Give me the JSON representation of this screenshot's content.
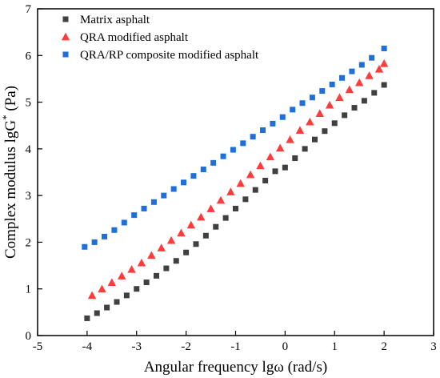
{
  "chart_data": {
    "type": "scatter",
    "title": "",
    "xlabel": "Angular frequency lgω (rad/s)",
    "ylabel": "Complex modulus lgG* (Pa)",
    "ylabel_main": "Complex modulus lgG",
    "ylabel_sup": "*",
    "ylabel_tail": " (Pa)",
    "xlim": [
      -5,
      3
    ],
    "ylim": [
      0,
      7
    ],
    "x_ticks": [
      "-5",
      "-4",
      "-3",
      "-2",
      "-1",
      "0",
      "1",
      "2",
      "3"
    ],
    "y_ticks": [
      "0",
      "1",
      "2",
      "3",
      "4",
      "5",
      "6",
      "7"
    ],
    "grid": false,
    "legend_position": "top-left",
    "series": [
      {
        "name": "Matrix asphalt",
        "marker": "square",
        "color": "#404040",
        "x": [
          -4.0,
          -3.8,
          -3.6,
          -3.4,
          -3.2,
          -3.0,
          -2.8,
          -2.6,
          -2.4,
          -2.2,
          -2.0,
          -1.8,
          -1.6,
          -1.4,
          -1.2,
          -1.0,
          -0.8,
          -0.6,
          -0.4,
          -0.2,
          0.0,
          0.2,
          0.4,
          0.6,
          0.8,
          1.0,
          1.2,
          1.4,
          1.6,
          1.8,
          2.0
        ],
        "y": [
          0.37,
          0.48,
          0.6,
          0.72,
          0.86,
          1.0,
          1.14,
          1.28,
          1.44,
          1.6,
          1.78,
          1.96,
          2.14,
          2.33,
          2.52,
          2.72,
          2.92,
          3.12,
          3.32,
          3.52,
          3.6,
          3.8,
          4.0,
          4.2,
          4.38,
          4.55,
          4.72,
          4.88,
          5.03,
          5.2,
          5.37
        ]
      },
      {
        "name": "QRA modified asphalt",
        "marker": "triangle",
        "color": "#ff3b3b",
        "x": [
          -3.9,
          -3.7,
          -3.5,
          -3.3,
          -3.1,
          -2.9,
          -2.7,
          -2.5,
          -2.3,
          -2.1,
          -1.9,
          -1.7,
          -1.5,
          -1.3,
          -1.1,
          -0.9,
          -0.7,
          -0.5,
          -0.3,
          -0.1,
          0.1,
          0.3,
          0.5,
          0.7,
          0.9,
          1.1,
          1.3,
          1.5,
          1.7,
          1.9,
          2.0
        ],
        "y": [
          0.86,
          1.0,
          1.14,
          1.28,
          1.42,
          1.56,
          1.72,
          1.88,
          2.04,
          2.2,
          2.37,
          2.54,
          2.72,
          2.9,
          3.08,
          3.26,
          3.45,
          3.64,
          3.83,
          4.02,
          4.2,
          4.4,
          4.58,
          4.76,
          4.94,
          5.1,
          5.27,
          5.42,
          5.57,
          5.71,
          5.83
        ]
      },
      {
        "name": "QRA/RP composite modified asphalt",
        "marker": "square",
        "color": "#1e6fd9",
        "x": [
          -4.05,
          -3.85,
          -3.65,
          -3.45,
          -3.25,
          -3.05,
          -2.85,
          -2.65,
          -2.45,
          -2.25,
          -2.05,
          -1.85,
          -1.65,
          -1.45,
          -1.25,
          -1.05,
          -0.85,
          -0.65,
          -0.45,
          -0.25,
          -0.05,
          0.15,
          0.35,
          0.55,
          0.75,
          0.95,
          1.15,
          1.35,
          1.55,
          1.75,
          2.0
        ],
        "y": [
          1.9,
          2.0,
          2.12,
          2.26,
          2.42,
          2.58,
          2.72,
          2.86,
          3.0,
          3.14,
          3.28,
          3.42,
          3.56,
          3.7,
          3.84,
          3.98,
          4.12,
          4.26,
          4.4,
          4.54,
          4.68,
          4.84,
          4.98,
          5.1,
          5.24,
          5.38,
          5.52,
          5.66,
          5.8,
          5.95,
          6.15
        ]
      }
    ]
  }
}
